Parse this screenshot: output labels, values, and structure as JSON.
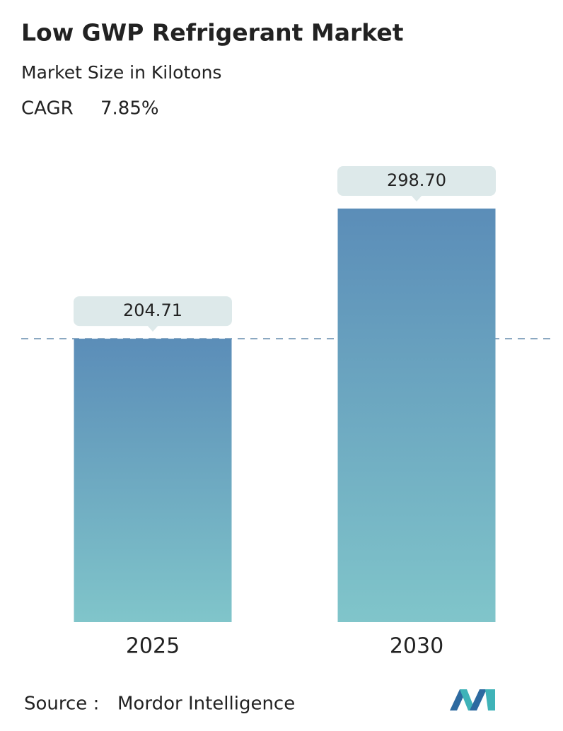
{
  "chart_data": {
    "type": "bar",
    "title": "Low GWP Refrigerant Market",
    "subtitle": "Market Size in Kilotons",
    "cagr": {
      "label": "CAGR",
      "value": "7.85%"
    },
    "categories": [
      "2025",
      "2030"
    ],
    "values": [
      204.71,
      298.7
    ],
    "value_labels": [
      "204.71",
      "298.70"
    ],
    "color_top": "#5b8db8",
    "color_bottom": "#80c5ca",
    "source": {
      "label": "Source :",
      "value": "Mordor Intelligence"
    }
  }
}
